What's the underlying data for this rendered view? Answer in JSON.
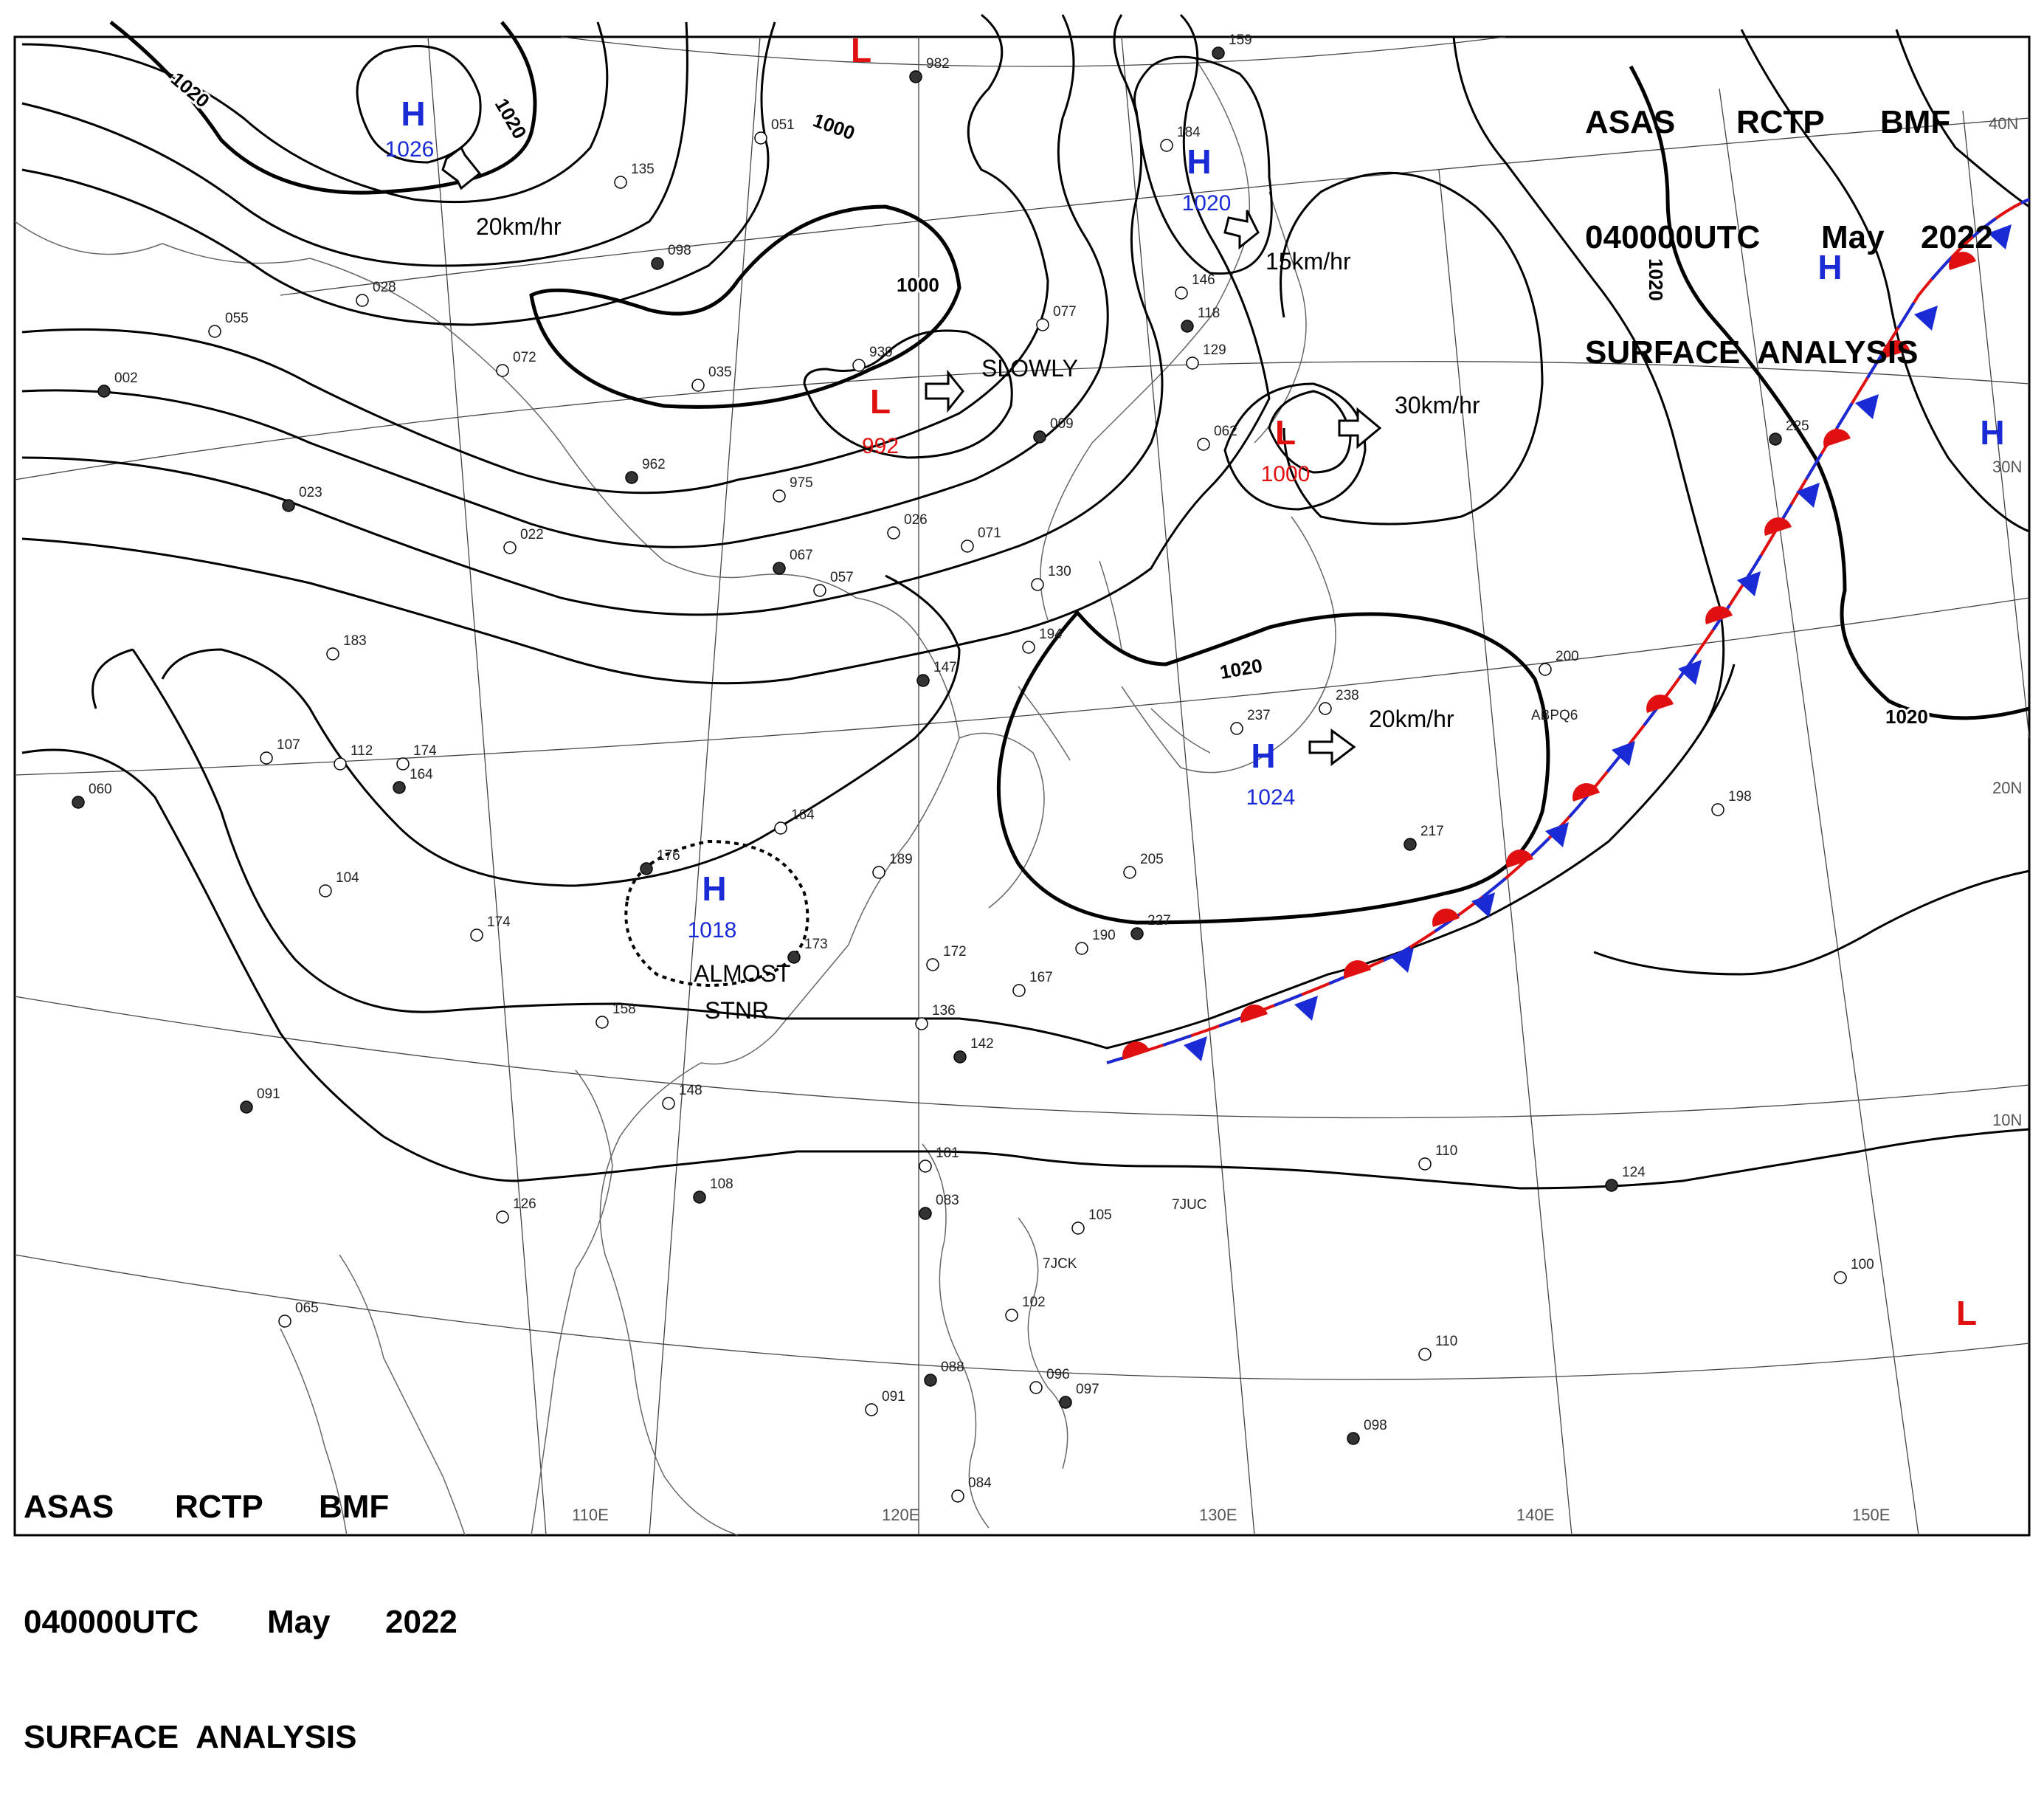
{
  "header": {
    "title_line1": [
      "ASAS",
      "RCTP",
      "BMF"
    ],
    "title_line2": [
      "040000UTC",
      "May",
      "2022"
    ],
    "title_line3": "SURFACE  ANALYSIS"
  },
  "lon_labels": [
    "110E",
    "120E",
    "130E",
    "140E",
    "150E"
  ],
  "lat_labels": [
    "40N",
    "30N",
    "20N",
    "10N"
  ],
  "isobar_labels": [
    "1020",
    "1020",
    "1000",
    "1000",
    "1020",
    "1020",
    "1020"
  ],
  "pressure_centers": [
    {
      "type": "H",
      "value": "1026",
      "color": "#1a2bd6",
      "label_color": "#1a2bd6"
    },
    {
      "type": "H",
      "value": "1020",
      "color": "#1a2bd6",
      "label_color": "#1a2bd6"
    },
    {
      "type": "H",
      "value": "1024",
      "color": "#1a2bd6",
      "label_color": "#1a2bd6"
    },
    {
      "type": "H",
      "value": "1018",
      "color": "#1a2bd6",
      "label_color": "#1a2bd6"
    },
    {
      "type": "H",
      "value": "",
      "color": "#1a2bd6",
      "label_color": "#1a2bd6"
    },
    {
      "type": "H",
      "value": "",
      "color": "#1a2bd6",
      "label_color": "#1a2bd6"
    },
    {
      "type": "L",
      "value": "992",
      "color": "#e01010",
      "label_color": "#e01010"
    },
    {
      "type": "L",
      "value": "1000",
      "color": "#e01010",
      "label_color": "#e01010"
    },
    {
      "type": "L",
      "value": "",
      "color": "#e01010",
      "label_color": "#e01010"
    },
    {
      "type": "L",
      "value": "",
      "color": "#e01010",
      "label_color": "#e01010"
    }
  ],
  "motion_labels": [
    "20km/hr",
    "15km/hr",
    "SLOWLY",
    "30km/hr",
    "20km/hr",
    "ALMOST",
    "STNR"
  ],
  "station_numbers": [
    "982",
    "051",
    "135",
    "098",
    "028",
    "055",
    "002",
    "072",
    "035",
    "962",
    "975",
    "939",
    "009",
    "026",
    "071",
    "067",
    "057",
    "022",
    "023",
    "183",
    "174",
    "164",
    "112",
    "107",
    "060",
    "104",
    "174",
    "176",
    "164",
    "189",
    "173",
    "172",
    "167",
    "142",
    "136",
    "158",
    "091",
    "148",
    "126",
    "108",
    "065",
    "101",
    "083",
    "105",
    "102",
    "088",
    "096",
    "091",
    "097",
    "084",
    "110",
    "124",
    "100",
    "110",
    "098",
    "130",
    "194",
    "147",
    "205",
    "190",
    "227",
    "237",
    "238",
    "217",
    "200",
    "198",
    "225",
    "184",
    "146",
    "118",
    "129",
    "077",
    "159",
    "062"
  ],
  "station_codes": [
    "ABPQ6",
    "7JUC",
    "7JCK"
  ],
  "colors": {
    "high": "#1a2bd6",
    "low": "#e01010",
    "front_warm": "#e01010",
    "front_cold": "#1a2bd6",
    "line": "#000000"
  }
}
